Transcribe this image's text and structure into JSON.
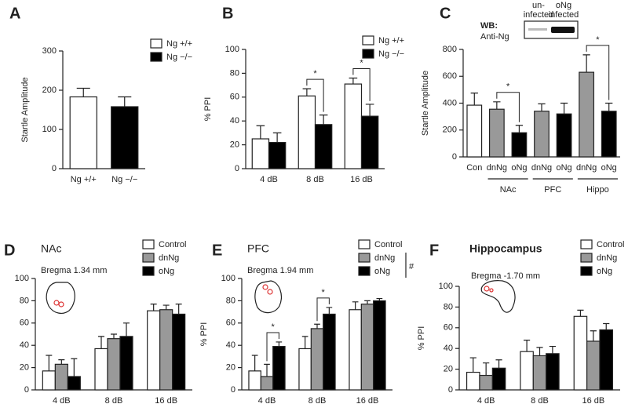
{
  "chart_data": [
    {
      "type": "bar",
      "panel": "A",
      "ylabel": "Startle Amplitude",
      "categories": [
        "Ng +/+",
        "Ng −/−"
      ],
      "values": [
        183,
        158
      ],
      "errors": [
        22,
        25
      ],
      "colors": [
        "#ffffff",
        "#000000"
      ],
      "ylim": [
        0,
        300
      ],
      "yticks": [
        0,
        100,
        200,
        300
      ],
      "legend": "upper right"
    },
    {
      "type": "grouped_bar",
      "panel": "B",
      "ylabel": "% PPI",
      "categories": [
        "4 dB",
        "8 dB",
        "16 dB"
      ],
      "series": [
        {
          "name": "Ng +/+",
          "color": "#ffffff",
          "values": [
            25,
            61,
            71
          ],
          "errors": [
            11,
            6,
            5
          ]
        },
        {
          "name": "Ng −/−",
          "color": "#000000",
          "values": [
            22,
            37,
            44
          ],
          "errors": [
            8,
            8,
            10
          ]
        }
      ],
      "significance": [
        null,
        "*",
        "*"
      ],
      "ylim": [
        0,
        100
      ],
      "yticks": [
        0,
        20,
        40,
        60,
        80,
        100
      ],
      "legend": "upper right"
    },
    {
      "type": "bar",
      "panel": "C",
      "ylabel": "Startle Amplitude",
      "categories": [
        "Con",
        "dnNg",
        "oNg",
        "dnNg",
        "oNg",
        "dnNg",
        "oNg"
      ],
      "groups": [
        null,
        "NAc",
        "NAc",
        "PFC",
        "PFC",
        "Hippo",
        "Hippo"
      ],
      "values": [
        385,
        355,
        180,
        340,
        320,
        630,
        340
      ],
      "errors": [
        90,
        55,
        55,
        55,
        80,
        130,
        60
      ],
      "colors": [
        "#ffffff",
        "#999999",
        "#000000",
        "#999999",
        "#000000",
        "#999999",
        "#000000"
      ],
      "significance": [
        null,
        null,
        "*",
        null,
        null,
        null,
        "*"
      ],
      "ylim": [
        0,
        800
      ],
      "yticks": [
        0,
        200,
        400,
        600,
        800
      ],
      "inset": {
        "title": "WB:",
        "label": "Anti-Ng",
        "lanes": [
          [
            "un-",
            "infected"
          ],
          [
            "oNg",
            "infected"
          ]
        ]
      }
    },
    {
      "type": "grouped_bar",
      "panel": "D",
      "title": "NAc",
      "annotation": "Bregma 1.34 mm",
      "ylabel": "% PPI",
      "categories": [
        "4 dB",
        "8 dB",
        "16 dB"
      ],
      "series": [
        {
          "name": "Control",
          "color": "#ffffff",
          "values": [
            17,
            37,
            71
          ],
          "errors": [
            14,
            11,
            6
          ]
        },
        {
          "name": "dnNg",
          "color": "#999999",
          "values": [
            23,
            46,
            72
          ],
          "errors": [
            4,
            4,
            4
          ]
        },
        {
          "name": "oNg",
          "color": "#000000",
          "values": [
            12,
            48,
            68
          ],
          "errors": [
            16,
            12,
            9
          ]
        }
      ],
      "ylim": [
        0,
        100
      ],
      "yticks": [
        0,
        20,
        40,
        60,
        80,
        100
      ],
      "legend": "upper right"
    },
    {
      "type": "grouped_bar",
      "panel": "E",
      "title": "PFC",
      "annotation": "Bregma 1.94 mm",
      "ylabel": "% PPI",
      "categories": [
        "4 dB",
        "8 dB",
        "16 dB"
      ],
      "series": [
        {
          "name": "Control",
          "color": "#ffffff",
          "values": [
            17,
            37,
            72
          ],
          "errors": [
            14,
            11,
            7
          ]
        },
        {
          "name": "dnNg",
          "color": "#999999",
          "values": [
            12,
            55,
            77
          ],
          "errors": [
            11,
            4,
            3
          ]
        },
        {
          "name": "oNg",
          "color": "#000000",
          "values": [
            39,
            68,
            80
          ],
          "errors": [
            4,
            6,
            2
          ]
        }
      ],
      "significance": [
        "*",
        "*",
        null
      ],
      "legend_note": "#",
      "ylim": [
        0,
        100
      ],
      "yticks": [
        0,
        20,
        40,
        60,
        80,
        100
      ],
      "legend": "upper right"
    },
    {
      "type": "grouped_bar",
      "panel": "F",
      "title": "Hippocampus",
      "annotation": "Bregma -1.70 mm",
      "ylabel": "% PPI",
      "categories": [
        "4 dB",
        "8 dB",
        "16 dB"
      ],
      "series": [
        {
          "name": "Control",
          "color": "#ffffff",
          "values": [
            17,
            37,
            71
          ],
          "errors": [
            14,
            11,
            6
          ]
        },
        {
          "name": "dnNg",
          "color": "#999999",
          "values": [
            14,
            33,
            47
          ],
          "errors": [
            12,
            8,
            10
          ]
        },
        {
          "name": "oNg",
          "color": "#000000",
          "values": [
            21,
            35,
            58
          ],
          "errors": [
            8,
            7,
            6
          ]
        }
      ],
      "ylim": [
        0,
        100
      ],
      "yticks": [
        0,
        20,
        40,
        60,
        80,
        100
      ],
      "legend": "upper right"
    }
  ]
}
